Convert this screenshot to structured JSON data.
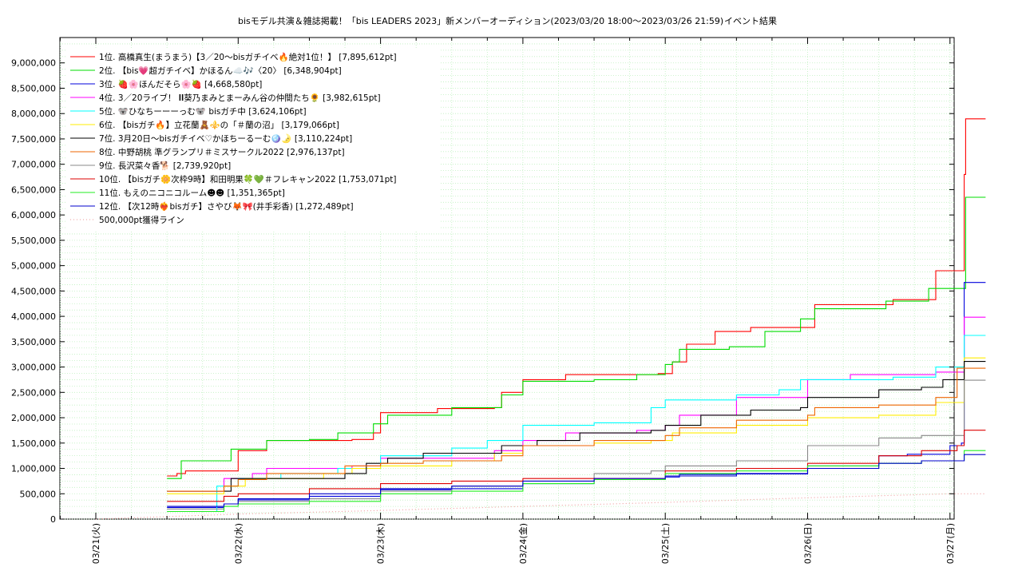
{
  "chart_data": {
    "type": "line",
    "title": "bisモデル共演＆雑誌掲載！「bis LEADERS 2023」新メンバーオーディション(2023/03/20 18:00～2023/03/26 21:59)",
    "subtitle": "イベント結果",
    "xlabel": "",
    "ylabel": "",
    "x_range": [
      "03/21",
      "03/27"
    ],
    "ylim": [
      0,
      9500000
    ],
    "y_ticks": [
      0,
      500000,
      1000000,
      1500000,
      2000000,
      2500000,
      3000000,
      3500000,
      4000000,
      4500000,
      5000000,
      5500000,
      6000000,
      6500000,
      7000000,
      7500000,
      8000000,
      8500000,
      9000000
    ],
    "y_tick_labels": [
      "0",
      "500,000",
      "1,000,000",
      "1,500,000",
      "2,000,000",
      "2,500,000",
      "3,000,000",
      "3,500,000",
      "4,000,000",
      "4,500,000",
      "5,000,000",
      "5,500,000",
      "6,000,000",
      "6,500,000",
      "7,000,000",
      "7,500,000",
      "8,000,000",
      "8,500,000",
      "9,000,000"
    ],
    "x_ticks": [
      0,
      1,
      2,
      3,
      4,
      5,
      6
    ],
    "x_tick_labels": [
      "03/21(火)",
      "03/22(水)",
      "03/23(木)",
      "03/24(金)",
      "03/25(土)",
      "03/26(日)",
      "03/27(月)"
    ],
    "grid": true,
    "legend_position": "top-left",
    "series": [
      {
        "name": "1位. 高橋真生(まうまう)【3／20〜bisガチイベ🔥絶対1位！】 [7,895,612pt]",
        "color": "#ff0000",
        "style": "solid",
        "points": [
          [
            0.5,
            850000
          ],
          [
            0.57,
            900000
          ],
          [
            0.63,
            950000
          ],
          [
            1.0,
            1350000
          ],
          [
            1.2,
            1550000
          ],
          [
            1.8,
            1570000
          ],
          [
            1.95,
            1700000
          ],
          [
            2.0,
            2100000
          ],
          [
            2.4,
            2180000
          ],
          [
            2.8,
            2200000
          ],
          [
            2.85,
            2500000
          ],
          [
            3.0,
            2750000
          ],
          [
            3.3,
            2850000
          ],
          [
            3.95,
            2870000
          ],
          [
            4.05,
            3100000
          ],
          [
            4.15,
            3450000
          ],
          [
            4.35,
            3700000
          ],
          [
            4.6,
            3780000
          ],
          [
            4.95,
            3780000
          ],
          [
            5.05,
            4230000
          ],
          [
            5.6,
            4330000
          ],
          [
            5.8,
            4330000
          ],
          [
            5.9,
            4900000
          ],
          [
            6.05,
            4900000
          ],
          [
            6.1,
            6800000
          ],
          [
            6.11,
            7895612
          ],
          [
            6.25,
            7895612
          ]
        ]
      },
      {
        "name": "2位. 【bis💗超ガチイベ】かほるん☁️🎶〈20〉 [6,348,904pt]",
        "color": "#00dd00",
        "style": "solid",
        "points": [
          [
            0.5,
            800000
          ],
          [
            0.6,
            1150000
          ],
          [
            0.85,
            1150000
          ],
          [
            0.95,
            1380000
          ],
          [
            1.2,
            1550000
          ],
          [
            1.5,
            1570000
          ],
          [
            1.7,
            1700000
          ],
          [
            1.95,
            1880000
          ],
          [
            2.05,
            2050000
          ],
          [
            2.5,
            2200000
          ],
          [
            2.85,
            2450000
          ],
          [
            3.0,
            2720000
          ],
          [
            3.5,
            2750000
          ],
          [
            3.8,
            2850000
          ],
          [
            4.0,
            3050000
          ],
          [
            4.05,
            3100000
          ],
          [
            4.1,
            3350000
          ],
          [
            4.45,
            3400000
          ],
          [
            4.7,
            3700000
          ],
          [
            4.95,
            3950000
          ],
          [
            5.05,
            4150000
          ],
          [
            5.55,
            4300000
          ],
          [
            5.85,
            4550000
          ],
          [
            6.05,
            4550000
          ],
          [
            6.11,
            6348904
          ],
          [
            6.25,
            6348904
          ]
        ]
      },
      {
        "name": "3位. 🍓🌸ほんだそら🌸🍓 [4,668,580pt]",
        "color": "#0000dd",
        "style": "solid",
        "points": [
          [
            0.5,
            230000
          ],
          [
            0.9,
            300000
          ],
          [
            1.0,
            380000
          ],
          [
            1.5,
            450000
          ],
          [
            2.0,
            580000
          ],
          [
            2.5,
            600000
          ],
          [
            3.0,
            700000
          ],
          [
            3.5,
            780000
          ],
          [
            4.0,
            830000
          ],
          [
            4.1,
            880000
          ],
          [
            4.5,
            890000
          ],
          [
            5.0,
            1050000
          ],
          [
            5.5,
            1250000
          ],
          [
            5.7,
            1280000
          ],
          [
            6.0,
            1450000
          ],
          [
            6.08,
            1500000
          ],
          [
            6.1,
            4668580
          ],
          [
            6.25,
            4668580
          ]
        ]
      },
      {
        "name": "4位. 3／20ライブ！ 𝐈𝐈葵乃まみとまーみん谷の仲間たち🌻 [3,982,615pt]",
        "color": "#ff00ff",
        "style": "solid",
        "points": [
          [
            0.5,
            550000
          ],
          [
            0.85,
            550000
          ],
          [
            0.9,
            800000
          ],
          [
            1.1,
            900000
          ],
          [
            1.2,
            1000000
          ],
          [
            1.8,
            1050000
          ],
          [
            2.0,
            1200000
          ],
          [
            2.5,
            1200000
          ],
          [
            2.8,
            1350000
          ],
          [
            3.0,
            1550000
          ],
          [
            3.3,
            1700000
          ],
          [
            3.8,
            1750000
          ],
          [
            4.0,
            1850000
          ],
          [
            4.1,
            2050000
          ],
          [
            4.5,
            2400000
          ],
          [
            5.0,
            2750000
          ],
          [
            5.3,
            2850000
          ],
          [
            5.9,
            2900000
          ],
          [
            6.1,
            3982615
          ],
          [
            6.25,
            3982615
          ]
        ]
      },
      {
        "name": "5位. 🐨ひなちーーーっむ🐨 bisガチ中 [3,624,106pt]",
        "color": "#00ffff",
        "style": "solid",
        "points": [
          [
            0.5,
            150000
          ],
          [
            0.85,
            650000
          ],
          [
            1.0,
            800000
          ],
          [
            1.3,
            900000
          ],
          [
            1.7,
            1000000
          ],
          [
            2.0,
            1250000
          ],
          [
            2.5,
            1400000
          ],
          [
            2.75,
            1550000
          ],
          [
            3.0,
            1850000
          ],
          [
            3.5,
            1900000
          ],
          [
            3.9,
            2200000
          ],
          [
            4.0,
            2350000
          ],
          [
            4.5,
            2450000
          ],
          [
            4.8,
            2550000
          ],
          [
            4.95,
            2750000
          ],
          [
            5.6,
            2800000
          ],
          [
            5.9,
            3000000
          ],
          [
            6.1,
            3624106
          ],
          [
            6.25,
            3624106
          ]
        ]
      },
      {
        "name": "6位. 【bisガチ🔥】立花蘭🧸⚜️の「＃蘭の沼」 [3,179,066pt]",
        "color": "#ffee00",
        "style": "solid",
        "points": [
          [
            0.5,
            500000
          ],
          [
            0.9,
            650000
          ],
          [
            1.05,
            800000
          ],
          [
            1.6,
            900000
          ],
          [
            1.8,
            1000000
          ],
          [
            2.0,
            1050000
          ],
          [
            2.5,
            1150000
          ],
          [
            2.8,
            1300000
          ],
          [
            3.0,
            1450000
          ],
          [
            3.5,
            1500000
          ],
          [
            3.9,
            1550000
          ],
          [
            4.05,
            1700000
          ],
          [
            4.5,
            1850000
          ],
          [
            5.0,
            2000000
          ],
          [
            5.5,
            2050000
          ],
          [
            5.9,
            2300000
          ],
          [
            6.1,
            3179066
          ],
          [
            6.25,
            3179066
          ]
        ]
      },
      {
        "name": "7位. 3月20日〜bisガチイベ♡かほちーるーむ🪩🌛 [3,110,224pt]",
        "color": "#000000",
        "style": "solid",
        "points": [
          [
            0.5,
            550000
          ],
          [
            0.85,
            550000
          ],
          [
            0.95,
            800000
          ],
          [
            1.4,
            800000
          ],
          [
            1.75,
            900000
          ],
          [
            1.9,
            1100000
          ],
          [
            2.05,
            1200000
          ],
          [
            2.3,
            1300000
          ],
          [
            2.75,
            1300000
          ],
          [
            2.85,
            1450000
          ],
          [
            3.1,
            1550000
          ],
          [
            3.4,
            1700000
          ],
          [
            3.9,
            1750000
          ],
          [
            4.0,
            1850000
          ],
          [
            4.25,
            2050000
          ],
          [
            4.6,
            2150000
          ],
          [
            4.95,
            2200000
          ],
          [
            5.0,
            2400000
          ],
          [
            5.5,
            2550000
          ],
          [
            5.8,
            2600000
          ],
          [
            5.95,
            2750000
          ],
          [
            6.1,
            3110224
          ],
          [
            6.25,
            3110224
          ]
        ]
      },
      {
        "name": "8位. 中野胡桃 準グランプリ＃ミスサークル2022 [2,976,137pt]",
        "color": "#ee6600",
        "style": "solid",
        "points": [
          [
            0.5,
            550000
          ],
          [
            0.9,
            650000
          ],
          [
            1.0,
            780000
          ],
          [
            1.2,
            900000
          ],
          [
            1.75,
            1050000
          ],
          [
            2.0,
            1100000
          ],
          [
            2.3,
            1150000
          ],
          [
            2.85,
            1250000
          ],
          [
            3.0,
            1450000
          ],
          [
            3.5,
            1550000
          ],
          [
            4.0,
            1650000
          ],
          [
            4.1,
            1800000
          ],
          [
            4.5,
            1950000
          ],
          [
            5.0,
            2050000
          ],
          [
            5.05,
            2200000
          ],
          [
            5.5,
            2250000
          ],
          [
            5.9,
            2400000
          ],
          [
            6.05,
            2976137
          ],
          [
            6.25,
            2976137
          ]
        ]
      },
      {
        "name": "9位. 長沢菜々香🐕 [2,739,920pt]",
        "color": "#888888",
        "style": "solid",
        "points": [
          [
            0.5,
            200000
          ],
          [
            0.9,
            300000
          ],
          [
            1.0,
            350000
          ],
          [
            1.5,
            400000
          ],
          [
            2.0,
            550000
          ],
          [
            2.5,
            650000
          ],
          [
            3.0,
            750000
          ],
          [
            3.5,
            900000
          ],
          [
            3.9,
            950000
          ],
          [
            4.0,
            1050000
          ],
          [
            4.5,
            1150000
          ],
          [
            5.0,
            1450000
          ],
          [
            5.5,
            1600000
          ],
          [
            5.8,
            1650000
          ],
          [
            6.1,
            2739920
          ],
          [
            6.25,
            2739920
          ]
        ]
      },
      {
        "name": "10位. 【bisガチ🌼次枠9時】和田明果🍀💚＃フレキャン2022 [1,753,071pt]",
        "color": "#dd0000",
        "style": "solid",
        "points": [
          [
            0.5,
            350000
          ],
          [
            0.9,
            450000
          ],
          [
            1.0,
            500000
          ],
          [
            1.5,
            600000
          ],
          [
            2.0,
            700000
          ],
          [
            2.5,
            750000
          ],
          [
            3.0,
            800000
          ],
          [
            3.5,
            800000
          ],
          [
            4.0,
            950000
          ],
          [
            4.5,
            1000000
          ],
          [
            5.0,
            1100000
          ],
          [
            5.5,
            1250000
          ],
          [
            5.8,
            1350000
          ],
          [
            6.05,
            1450000
          ],
          [
            6.1,
            1753071
          ],
          [
            6.25,
            1753071
          ]
        ]
      },
      {
        "name": "11位. もえのニコニコルーム☻☻ [1,351,365pt]",
        "color": "#22ee22",
        "style": "solid",
        "points": [
          [
            0.5,
            150000
          ],
          [
            0.9,
            250000
          ],
          [
            1.0,
            300000
          ],
          [
            1.5,
            350000
          ],
          [
            2.0,
            500000
          ],
          [
            2.5,
            550000
          ],
          [
            3.0,
            700000
          ],
          [
            3.5,
            780000
          ],
          [
            4.0,
            900000
          ],
          [
            4.5,
            950000
          ],
          [
            5.0,
            1050000
          ],
          [
            5.5,
            1100000
          ],
          [
            5.8,
            1150000
          ],
          [
            6.1,
            1351365
          ],
          [
            6.25,
            1351365
          ]
        ]
      },
      {
        "name": "12位. 【次12時❤️‍🔥bisガチ】さやび🦊🎀(井手彩香) [1,272,489pt]",
        "color": "#0000cc",
        "style": "solid",
        "points": [
          [
            0.5,
            250000
          ],
          [
            0.9,
            300000
          ],
          [
            1.0,
            400000
          ],
          [
            1.5,
            500000
          ],
          [
            2.0,
            600000
          ],
          [
            2.5,
            650000
          ],
          [
            3.0,
            750000
          ],
          [
            3.5,
            800000
          ],
          [
            4.0,
            850000
          ],
          [
            4.5,
            900000
          ],
          [
            5.0,
            1000000
          ],
          [
            5.5,
            1100000
          ],
          [
            5.8,
            1150000
          ],
          [
            6.1,
            1272489
          ],
          [
            6.25,
            1272489
          ]
        ]
      },
      {
        "name": "500,000pt獲得ライン",
        "color": "#ee9999",
        "style": "dotted",
        "points": [
          [
            0.0,
            0
          ],
          [
            1.0,
            100000
          ],
          [
            2.0,
            170000
          ],
          [
            3.0,
            250000
          ],
          [
            4.0,
            330000
          ],
          [
            5.0,
            420000
          ],
          [
            6.0,
            500000
          ],
          [
            6.25,
            500000
          ]
        ]
      }
    ]
  }
}
